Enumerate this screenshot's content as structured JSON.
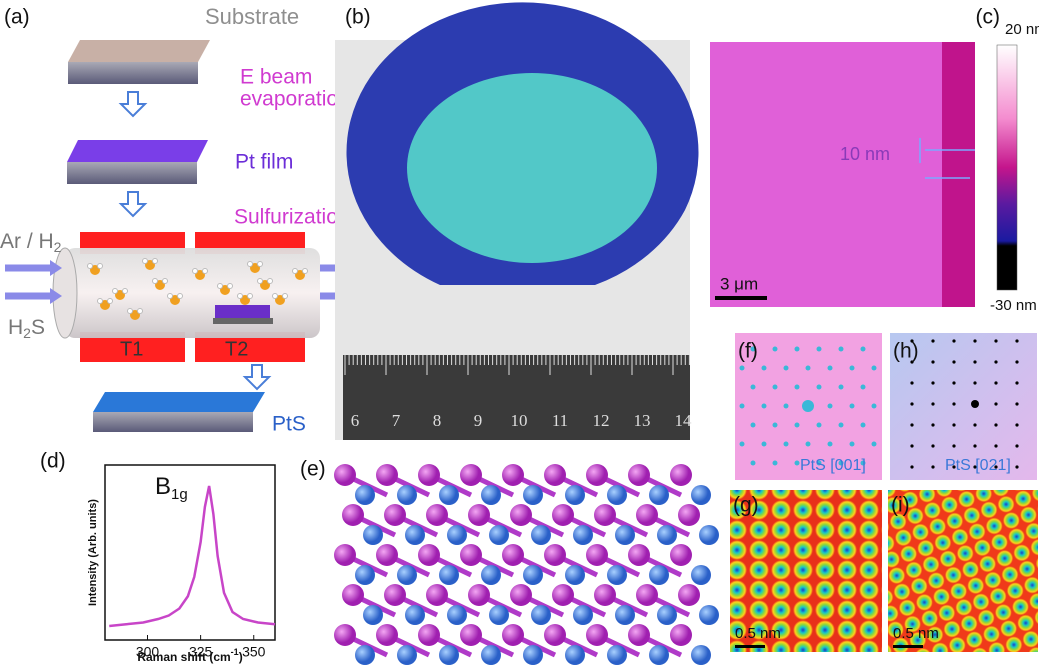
{
  "panels": {
    "a": {
      "label": "(a)",
      "substrate": "Substrate",
      "step1": [
        "E beam",
        "evaporation"
      ],
      "pt_film": "Pt film",
      "step2": "Sulfurization",
      "carrier_gas": {
        "base": "Ar / H",
        "sub": "2"
      },
      "h2s": {
        "base": "H",
        "sub": "2",
        "tail": "S"
      },
      "t1": "T1",
      "t2": "T2",
      "product": "PtS"
    },
    "b": {
      "label": "(b)",
      "ruler": [
        "6",
        "7",
        "8",
        "9",
        "10",
        "11",
        "12",
        "13",
        "14"
      ]
    },
    "c": {
      "label": "(c)",
      "step_height": "10 nm",
      "scale_bar": "3 μm",
      "colorbar_max": "20 nm",
      "colorbar_min": "-30 nm"
    },
    "e": {
      "label": "(e)"
    },
    "f": {
      "label": "(f)",
      "zone": "PtS [001]"
    },
    "h": {
      "label": "(h)",
      "zone": "PtS [021]"
    },
    "g": {
      "label": "(g)",
      "scale_bar": "0.5 nm"
    },
    "i": {
      "label": "(i)",
      "scale_bar": "0.5 nm"
    }
  },
  "chart_data": {
    "type": "line",
    "label": "(d)",
    "peak_label": {
      "base": "B",
      "sub": "1g"
    },
    "ylabel": "Intensity (Arb. units)",
    "xlabel": {
      "base": "Raman shift (cm",
      "sup": "-1",
      "tail": ")"
    },
    "x": [
      282,
      290,
      298,
      305,
      310,
      315,
      319,
      322,
      325,
      327,
      329,
      331,
      333,
      336,
      340,
      345,
      352,
      360
    ],
    "values": [
      0.08,
      0.09,
      0.1,
      0.12,
      0.14,
      0.18,
      0.25,
      0.36,
      0.56,
      0.76,
      0.88,
      0.72,
      0.48,
      0.27,
      0.16,
      0.12,
      0.1,
      0.09
    ],
    "color": "#c845c8",
    "xlim": [
      280,
      360
    ],
    "ylim": [
      0,
      1
    ],
    "xticks": [
      300,
      325,
      350
    ]
  }
}
